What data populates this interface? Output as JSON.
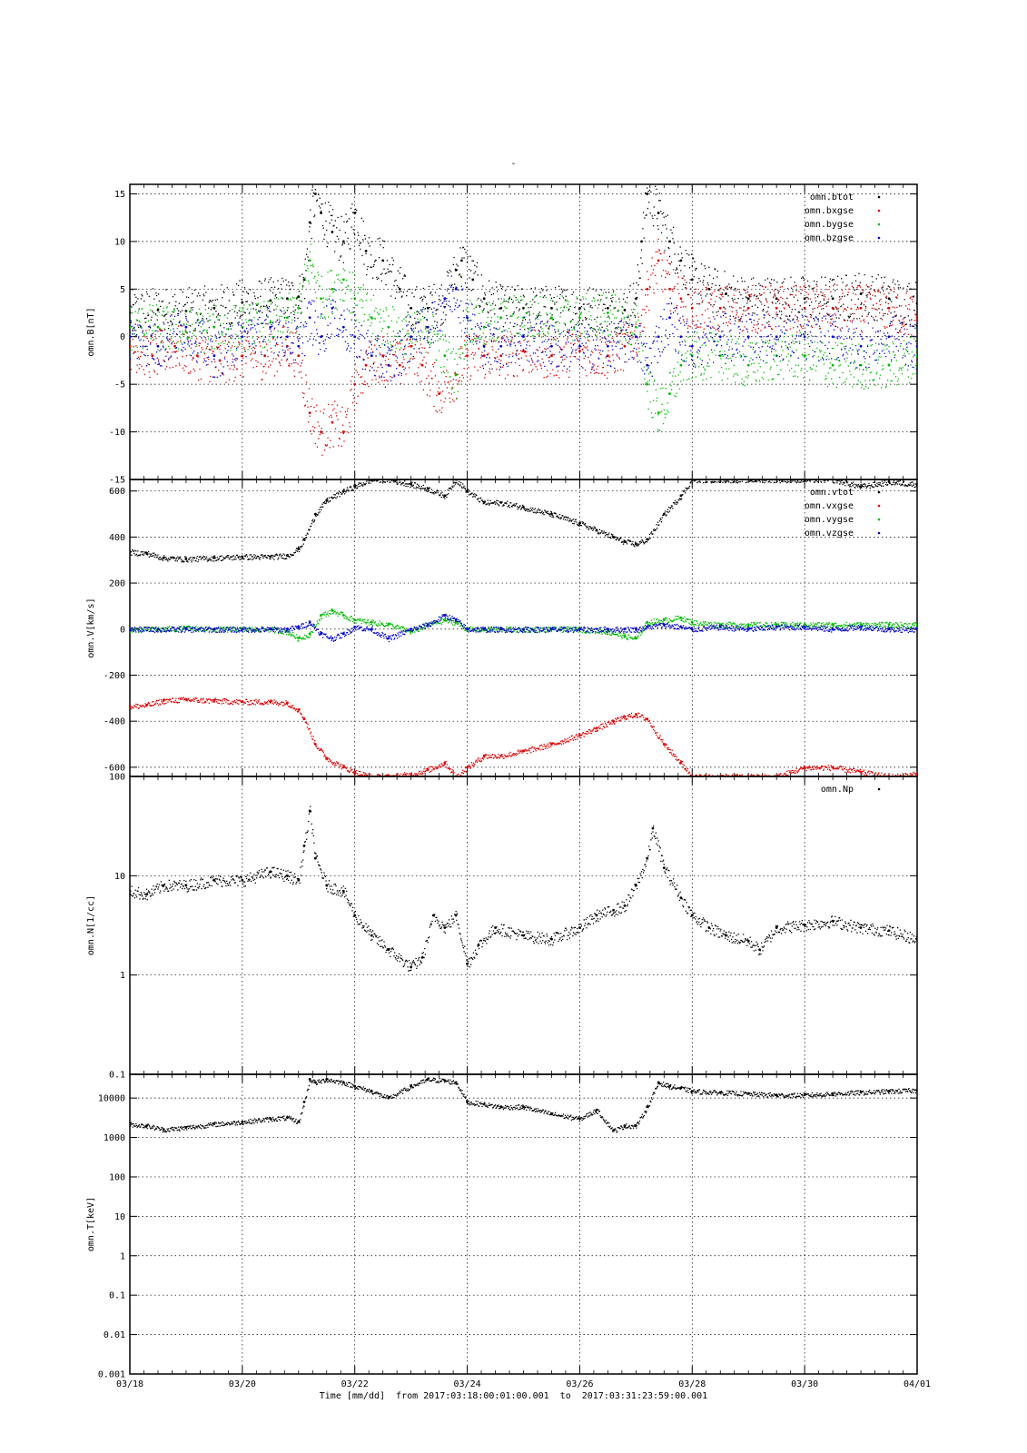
{
  "title": "-",
  "x_axis_label": "Time [mm/dd]  from 2017:03:18:00:01:00.001  to  2017:03:31:23:59:00.001",
  "x_ticks": [
    "03/18",
    "03/20",
    "03/22",
    "03/24",
    "03/26",
    "03/28",
    "03/30",
    "04/01"
  ],
  "colors": {
    "black": "#000000",
    "red": "#dd0000",
    "green": "#00bb00",
    "blue": "#0000cc"
  },
  "chart_data": [
    {
      "type": "scatter",
      "ylabel": "omn.B[nT]",
      "yscale": "linear",
      "ylim": [
        -15,
        16
      ],
      "yticks": [
        15,
        10,
        5,
        0,
        -5,
        -10,
        -15
      ],
      "ytick_labels": [
        "15",
        "10",
        "5",
        "0",
        "-5",
        "-10",
        "-15"
      ],
      "xlim_days": [
        0,
        14
      ],
      "series": [
        {
          "name": "omn.btot",
          "color": "#000000",
          "x": [
            0,
            0.5,
            1,
            1.5,
            2,
            2.5,
            2.8,
            3.0,
            3.1,
            3.2,
            3.3,
            3.4,
            3.6,
            3.8,
            4.0,
            4.2,
            4.5,
            4.8,
            5.0,
            5.3,
            5.6,
            5.8,
            5.9,
            6.1,
            6.3,
            6.6,
            7.0,
            7.5,
            8.0,
            8.5,
            8.8,
            9.0,
            9.1,
            9.2,
            9.4,
            9.6,
            9.8,
            10.0,
            10.3,
            10.6,
            11.0,
            11.5,
            12.0,
            12.5,
            13.0,
            13.5,
            14.0
          ],
          "y": [
            2.5,
            2.8,
            2.7,
            3.0,
            3.6,
            3.8,
            4.0,
            4.2,
            6,
            12,
            15,
            13,
            11,
            10,
            13,
            9,
            8,
            5,
            3,
            3,
            4,
            7,
            8,
            6,
            4,
            3,
            3,
            3,
            3,
            3,
            2.8,
            4,
            10,
            15,
            13,
            10,
            8,
            6,
            5,
            4.5,
            4,
            4,
            4,
            4,
            4.5,
            4,
            3.5
          ]
        },
        {
          "name": "omn.bxgse",
          "color": "#dd0000",
          "x": [
            0,
            0.4,
            0.8,
            1.2,
            1.6,
            2.0,
            2.4,
            2.8,
            3.0,
            3.2,
            3.4,
            3.6,
            3.8,
            4.0,
            4.2,
            4.5,
            4.8,
            5.0,
            5.2,
            5.5,
            5.8,
            6.0,
            6.3,
            6.6,
            7.0,
            7.5,
            8.0,
            8.5,
            8.8,
            9.0,
            9.2,
            9.4,
            9.6,
            9.8,
            10.0,
            10.5,
            11.0,
            11.5,
            12.0,
            12.5,
            13.0,
            13.5,
            14.0
          ],
          "y": [
            -1,
            -2,
            -1,
            -2,
            -2.5,
            -2,
            -2,
            -1,
            -2,
            -8,
            -10,
            -9,
            -10,
            -5,
            -3,
            -2,
            -3,
            -1,
            -3,
            -6,
            -4,
            -2,
            -2,
            -2,
            -1.5,
            -2,
            -1.5,
            -2,
            -1,
            0,
            5,
            8,
            5,
            4,
            3,
            3,
            3,
            3,
            3,
            3,
            3,
            3,
            2
          ]
        },
        {
          "name": "omn.bygse",
          "color": "#00bb00",
          "x": [
            0,
            0.5,
            1,
            1.5,
            2,
            2.5,
            2.8,
            3.0,
            3.2,
            3.4,
            3.6,
            3.8,
            4.0,
            4.3,
            4.6,
            5.0,
            5.3,
            5.6,
            5.8,
            6.0,
            6.3,
            6.6,
            7.0,
            7.5,
            8.0,
            8.5,
            9.0,
            9.2,
            9.4,
            9.6,
            9.8,
            10.0,
            10.5,
            11.0,
            11.5,
            12.0,
            12.5,
            13.0,
            13.5,
            14.0
          ],
          "y": [
            1,
            1,
            0.5,
            1,
            1,
            1.5,
            2,
            3,
            8,
            4,
            5,
            6,
            4,
            2,
            1,
            0,
            1,
            -2,
            -4,
            2,
            1,
            2,
            2,
            2,
            2,
            2.5,
            1,
            -5,
            -8,
            -6,
            -3,
            -2,
            -2,
            -3,
            -2,
            -2,
            -3,
            -3,
            -3,
            -2
          ]
        },
        {
          "name": "omn.bzgse",
          "color": "#0000cc",
          "x": [
            0,
            0.5,
            1,
            1.5,
            2,
            2.5,
            2.8,
            3.0,
            3.2,
            3.4,
            3.6,
            3.8,
            4.0,
            4.3,
            4.6,
            5.0,
            5.3,
            5.6,
            5.8,
            6.0,
            6.3,
            6.6,
            7.0,
            7.5,
            8.0,
            8.5,
            9.0,
            9.2,
            9.4,
            9.6,
            9.8,
            10.0,
            10.5,
            11.0,
            11.5,
            12.0,
            12.5,
            13.0,
            13.5,
            14.0
          ],
          "y": [
            0,
            -1,
            1,
            -2,
            0,
            1,
            0,
            -1,
            2,
            0,
            3,
            1,
            0,
            -2,
            -3,
            0,
            1,
            4,
            5,
            2,
            -1,
            -1,
            0,
            -1,
            -1,
            -1,
            0,
            -3,
            0,
            2,
            0,
            -1,
            0,
            0,
            0,
            0,
            0,
            -1,
            0,
            -1
          ]
        }
      ]
    },
    {
      "type": "scatter",
      "ylabel": "omn.V[km/s]",
      "yscale": "linear",
      "ylim": [
        -640,
        650
      ],
      "yticks": [
        600,
        400,
        200,
        0,
        -200,
        -400,
        -600
      ],
      "ytick_labels": [
        "600",
        "400",
        "200",
        "0",
        "-200",
        "-400",
        "-600"
      ],
      "xlim_days": [
        0,
        14
      ],
      "series": [
        {
          "name": "omn.vtot",
          "color": "#000000",
          "x": [
            0,
            0.3,
            0.6,
            1.0,
            1.5,
            2.0,
            2.5,
            2.8,
            3.0,
            3.1,
            3.3,
            3.5,
            3.8,
            4.0,
            4.3,
            4.6,
            5.0,
            5.3,
            5.6,
            5.8,
            6.0,
            6.3,
            6.6,
            7.0,
            7.5,
            8.0,
            8.3,
            8.6,
            8.8,
            9.0,
            9.2,
            9.5,
            9.8,
            10.0,
            10.5,
            11.0,
            11.5,
            12.0,
            12.5,
            13.0,
            13.5,
            14.0
          ],
          "y": [
            335,
            330,
            310,
            305,
            310,
            315,
            315,
            320,
            350,
            390,
            500,
            560,
            600,
            620,
            650,
            650,
            630,
            610,
            580,
            650,
            600,
            550,
            550,
            530,
            500,
            460,
            430,
            400,
            380,
            370,
            390,
            500,
            580,
            650,
            650,
            650,
            650,
            650,
            650,
            620,
            640,
            630
          ]
        },
        {
          "name": "omn.vxgse",
          "color": "#dd0000",
          "x": [
            0,
            0.3,
            0.6,
            1.0,
            1.5,
            2.0,
            2.5,
            2.8,
            3.0,
            3.1,
            3.3,
            3.5,
            3.8,
            4.0,
            4.3,
            4.6,
            5.0,
            5.3,
            5.6,
            5.8,
            6.0,
            6.3,
            6.6,
            7.0,
            7.5,
            8.0,
            8.3,
            8.6,
            8.8,
            9.0,
            9.2,
            9.5,
            9.8,
            10.0,
            10.5,
            11.0,
            11.5,
            12.0,
            12.5,
            13.0,
            13.5,
            14.0
          ],
          "y": [
            -335,
            -330,
            -310,
            -305,
            -310,
            -315,
            -315,
            -320,
            -350,
            -390,
            -500,
            -560,
            -600,
            -620,
            -640,
            -640,
            -630,
            -610,
            -580,
            -640,
            -600,
            -550,
            -550,
            -530,
            -500,
            -460,
            -430,
            -400,
            -380,
            -370,
            -390,
            -500,
            -580,
            -640,
            -640,
            -640,
            -640,
            -600,
            -600,
            -620,
            -640,
            -630
          ]
        },
        {
          "name": "omn.vygse",
          "color": "#00bb00",
          "x": [
            0,
            0.5,
            1.0,
            1.5,
            2.0,
            2.5,
            2.8,
            3.0,
            3.2,
            3.4,
            3.6,
            3.8,
            4.0,
            4.3,
            4.6,
            5.0,
            5.3,
            5.6,
            5.8,
            6.0,
            6.3,
            6.6,
            7.0,
            7.5,
            8.0,
            8.5,
            8.8,
            9.0,
            9.2,
            9.5,
            9.8,
            10.0,
            10.5,
            11.0,
            11.5,
            12.0,
            12.5,
            13.0,
            13.5,
            14.0
          ],
          "y": [
            0,
            0,
            5,
            0,
            0,
            0,
            -10,
            -40,
            -20,
            60,
            80,
            60,
            40,
            30,
            20,
            -10,
            20,
            40,
            30,
            0,
            0,
            0,
            0,
            0,
            0,
            -10,
            -30,
            -40,
            30,
            40,
            50,
            30,
            20,
            20,
            20,
            20,
            20,
            20,
            20,
            20
          ]
        },
        {
          "name": "omn.vzgse",
          "color": "#0000cc",
          "x": [
            0,
            0.5,
            1.0,
            1.5,
            2.0,
            2.5,
            2.8,
            3.0,
            3.2,
            3.4,
            3.6,
            3.8,
            4.0,
            4.3,
            4.6,
            5.0,
            5.3,
            5.6,
            5.8,
            6.0,
            6.3,
            6.6,
            7.0,
            7.5,
            8.0,
            8.5,
            8.8,
            9.0,
            9.2,
            9.5,
            9.8,
            10.0,
            10.5,
            11.0,
            11.5,
            12.0,
            12.5,
            13.0,
            13.5,
            14.0
          ],
          "y": [
            0,
            0,
            0,
            0,
            0,
            0,
            0,
            10,
            30,
            -20,
            -40,
            -20,
            10,
            0,
            -40,
            0,
            20,
            60,
            40,
            0,
            0,
            0,
            0,
            0,
            0,
            0,
            0,
            0,
            10,
            20,
            10,
            0,
            10,
            0,
            10,
            10,
            0,
            10,
            0,
            0
          ]
        }
      ]
    },
    {
      "type": "scatter",
      "ylabel": "omn.N[1/cc]",
      "yscale": "log",
      "ylim": [
        0.1,
        100
      ],
      "yticks": [
        100,
        10,
        1,
        0.1
      ],
      "ytick_labels": [
        "100",
        "10",
        "1",
        "0.1"
      ],
      "xlim_days": [
        0,
        14
      ],
      "series": [
        {
          "name": "omn.Np",
          "color": "#000000",
          "x": [
            0,
            0.3,
            0.6,
            1.0,
            1.5,
            2.0,
            2.5,
            2.8,
            3.0,
            3.1,
            3.2,
            3.3,
            3.5,
            3.8,
            4.0,
            4.3,
            4.6,
            5.0,
            5.2,
            5.4,
            5.6,
            5.8,
            6.0,
            6.2,
            6.5,
            7.0,
            7.5,
            8.0,
            8.3,
            8.6,
            8.8,
            9.0,
            9.2,
            9.3,
            9.5,
            9.8,
            10.0,
            10.3,
            10.6,
            11.0,
            11.2,
            11.5,
            12.0,
            12.5,
            13.0,
            13.5,
            14.0
          ],
          "y": [
            7,
            6.5,
            8,
            8,
            9,
            9,
            11,
            10,
            9,
            20,
            45,
            15,
            8,
            7,
            4,
            2.5,
            1.8,
            1.2,
            1.5,
            4,
            3,
            4,
            1.3,
            2,
            3,
            2.5,
            2.3,
            3,
            4,
            4.5,
            5,
            8,
            15,
            30,
            12,
            6,
            4,
            3,
            2.5,
            2.2,
            1.8,
            3,
            3.2,
            3.5,
            3,
            2.8,
            2.3
          ]
        }
      ]
    },
    {
      "type": "scatter",
      "ylabel": "omn.T[keV]",
      "yscale": "log",
      "ylim": [
        0.001,
        40000
      ],
      "yticks": [
        10000,
        1000,
        100,
        10,
        1,
        0.1,
        0.01,
        0.001
      ],
      "ytick_labels": [
        "10000",
        "1000",
        "100",
        "10",
        "1",
        "0.1",
        "0.01",
        "0.001"
      ],
      "xlim_days": [
        0,
        14
      ],
      "series": [
        {
          "name": "",
          "color": "#000000",
          "x": [
            0,
            0.3,
            0.6,
            1.0,
            1.5,
            2.0,
            2.5,
            2.8,
            3.0,
            3.1,
            3.2,
            3.3,
            3.5,
            3.8,
            4.0,
            4.3,
            4.6,
            5.0,
            5.3,
            5.6,
            5.8,
            6.0,
            6.3,
            6.6,
            7.0,
            7.5,
            8.0,
            8.3,
            8.6,
            8.8,
            9.0,
            9.2,
            9.4,
            9.6,
            9.8,
            10.0,
            10.5,
            11.0,
            11.5,
            12.0,
            12.5,
            13.0,
            13.5,
            14.0
          ],
          "y": [
            2200,
            2000,
            1600,
            1800,
            2200,
            2500,
            3000,
            3200,
            2500,
            8000,
            30000,
            25000,
            30000,
            25000,
            20000,
            15000,
            10000,
            20000,
            30000,
            28000,
            25000,
            8000,
            7000,
            6000,
            6000,
            4000,
            3000,
            5000,
            1500,
            2000,
            2000,
            6000,
            25000,
            20000,
            18000,
            15000,
            14000,
            13000,
            12000,
            12000,
            13000,
            14000,
            15000,
            16000
          ]
        }
      ]
    }
  ]
}
